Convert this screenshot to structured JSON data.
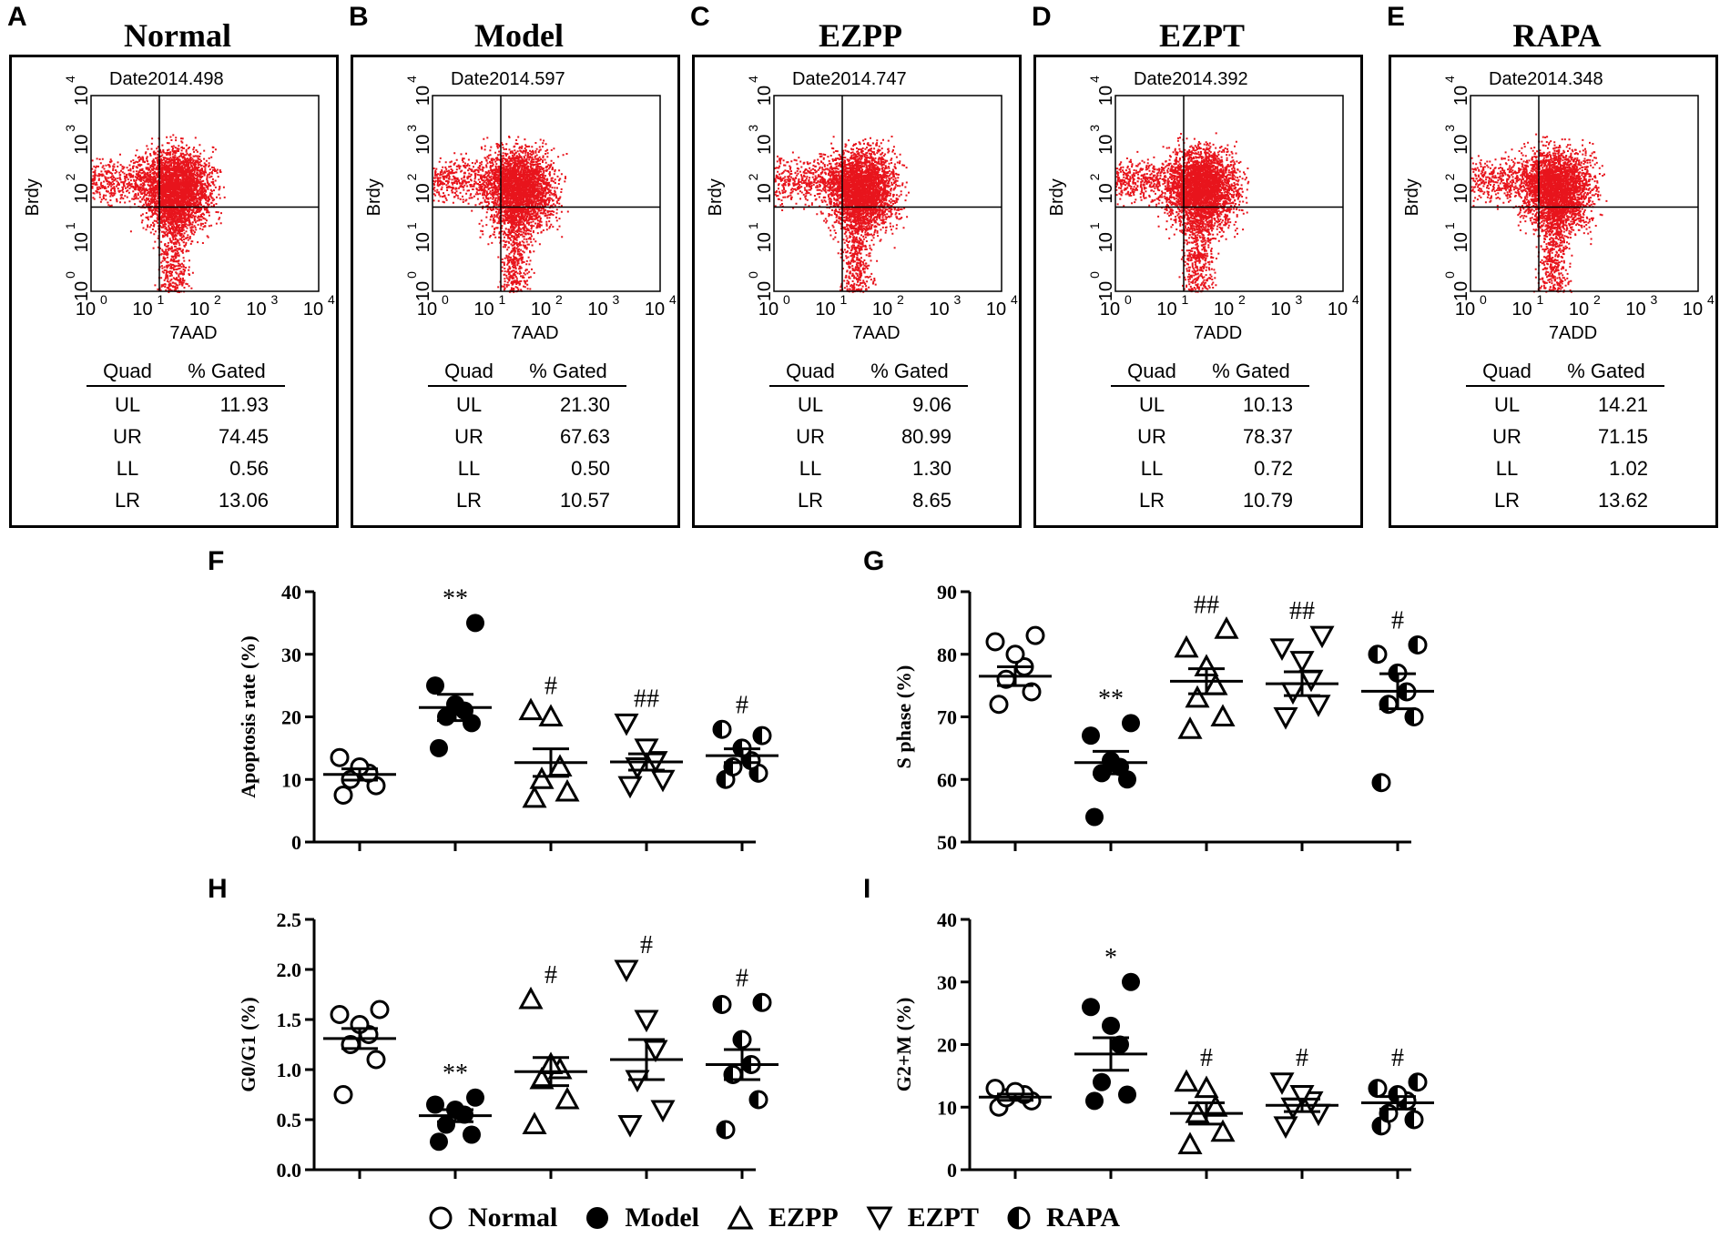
{
  "flow_panels": [
    {
      "letter": "A",
      "title": "Normal",
      "date": "Date2014.498",
      "xaxis": "7AAD",
      "yaxis": "Brdy",
      "table_header": [
        "Quad",
        "% Gated"
      ],
      "rows": [
        {
          "q": "UL",
          "v": "11.93"
        },
        {
          "q": "UR",
          "v": "74.45"
        },
        {
          "q": "LL",
          "v": "0.56"
        },
        {
          "q": "LR",
          "v": "13.06"
        }
      ]
    },
    {
      "letter": "B",
      "title": "Model",
      "date": "Date2014.597",
      "xaxis": "7AAD",
      "yaxis": "Brdy",
      "table_header": [
        "Quad",
        "% Gated"
      ],
      "rows": [
        {
          "q": "UL",
          "v": "21.30"
        },
        {
          "q": "UR",
          "v": "67.63"
        },
        {
          "q": "LL",
          "v": "0.50"
        },
        {
          "q": "LR",
          "v": "10.57"
        }
      ]
    },
    {
      "letter": "C",
      "title": "EZPP",
      "date": "Date2014.747",
      "xaxis": "7AAD",
      "yaxis": "Brdy",
      "table_header": [
        "Quad",
        "% Gated"
      ],
      "rows": [
        {
          "q": "UL",
          "v": "9.06"
        },
        {
          "q": "UR",
          "v": "80.99"
        },
        {
          "q": "LL",
          "v": "1.30"
        },
        {
          "q": "LR",
          "v": "8.65"
        }
      ]
    },
    {
      "letter": "D",
      "title": "EZPT",
      "date": "Date2014.392",
      "xaxis": "7ADD",
      "yaxis": "Brdy",
      "table_header": [
        "Quad",
        "% Gated"
      ],
      "rows": [
        {
          "q": "UL",
          "v": "10.13"
        },
        {
          "q": "UR",
          "v": "78.37"
        },
        {
          "q": "LL",
          "v": "0.72"
        },
        {
          "q": "LR",
          "v": "10.79"
        }
      ]
    },
    {
      "letter": "E",
      "title": "RAPA",
      "date": "Date2014.348",
      "xaxis": "7ADD",
      "yaxis": "Brdy",
      "table_header": [
        "Quad",
        "% Gated"
      ],
      "rows": [
        {
          "q": "UL",
          "v": "14.21"
        },
        {
          "q": "UR",
          "v": "71.15"
        },
        {
          "q": "LL",
          "v": "1.02"
        },
        {
          "q": "LR",
          "v": "13.62"
        }
      ]
    }
  ],
  "flow_tick_labels": [
    "10",
    "10",
    "10",
    "10",
    "10"
  ],
  "flow_tick_exponents": [
    "0",
    "1",
    "2",
    "3",
    "4"
  ],
  "dot_color": "#e8141c",
  "chart_data": [
    {
      "letter": "F",
      "type": "scatter",
      "ylabel": "Apoptosis rate (%)",
      "ylim": [
        0,
        40
      ],
      "yticks": [
        0,
        10,
        20,
        30,
        40
      ],
      "groups": [
        {
          "name": "Normal",
          "values": [
            7.5,
            9,
            10,
            11,
            12,
            13.5
          ],
          "mean": 10.8,
          "sem": 0.9,
          "annotation": ""
        },
        {
          "name": "Model",
          "values": [
            15,
            19,
            20,
            21,
            22,
            25,
            35
          ],
          "mean": 21.5,
          "sem": 2.1,
          "annotation": "**"
        },
        {
          "name": "EZPP",
          "values": [
            7,
            8,
            10,
            12,
            20,
            21
          ],
          "mean": 12.7,
          "sem": 2.2,
          "annotation": "#"
        },
        {
          "name": "EZPT",
          "values": [
            9,
            10,
            12,
            13,
            15,
            19
          ],
          "mean": 12.8,
          "sem": 1.3,
          "annotation": "##"
        },
        {
          "name": "RAPA",
          "values": [
            10,
            11,
            12,
            13,
            15,
            18,
            17
          ],
          "mean": 13.8,
          "sem": 1.1,
          "annotation": "#"
        }
      ]
    },
    {
      "letter": "G",
      "type": "scatter",
      "ylabel": "S phase (%)",
      "ylim": [
        50,
        90
      ],
      "yticks": [
        50,
        60,
        70,
        80,
        90
      ],
      "groups": [
        {
          "name": "Normal",
          "values": [
            72,
            74,
            76,
            78,
            80,
            82,
            83
          ],
          "mean": 76.5,
          "sem": 1.5,
          "annotation": ""
        },
        {
          "name": "Model",
          "values": [
            54,
            60,
            61,
            62,
            63,
            67,
            69
          ],
          "mean": 62.7,
          "sem": 1.8,
          "annotation": "**"
        },
        {
          "name": "EZPP",
          "values": [
            68,
            70,
            73,
            75,
            78,
            81,
            84
          ],
          "mean": 75.7,
          "sem": 2.0,
          "annotation": "##"
        },
        {
          "name": "EZPT",
          "values": [
            70,
            72,
            74,
            76,
            79,
            81,
            83
          ],
          "mean": 75.3,
          "sem": 1.9,
          "annotation": "##"
        },
        {
          "name": "RAPA",
          "values": [
            59.5,
            70,
            72,
            74,
            77,
            80,
            81.5
          ],
          "mean": 74.1,
          "sem": 2.8,
          "annotation": "#"
        }
      ]
    },
    {
      "letter": "H",
      "type": "scatter",
      "ylabel": "G0/G1 (%)",
      "ylim": [
        0,
        2.5
      ],
      "yticks": [
        "0.0",
        "0.5",
        "1.0",
        "1.5",
        "2.0",
        "2.5"
      ],
      "groups": [
        {
          "name": "Normal",
          "values": [
            0.75,
            1.1,
            1.25,
            1.35,
            1.45,
            1.55,
            1.6
          ],
          "mean": 1.31,
          "sem": 0.1,
          "annotation": ""
        },
        {
          "name": "Model",
          "values": [
            0.28,
            0.35,
            0.45,
            0.55,
            0.6,
            0.65,
            0.72
          ],
          "mean": 0.54,
          "sem": 0.06,
          "annotation": "**"
        },
        {
          "name": "EZPP",
          "values": [
            0.45,
            0.7,
            0.9,
            1.0,
            1.05,
            1.7
          ],
          "mean": 0.98,
          "sem": 0.14,
          "annotation": "#"
        },
        {
          "name": "EZPT",
          "values": [
            0.45,
            0.6,
            0.9,
            1.2,
            1.5,
            2.0
          ],
          "mean": 1.1,
          "sem": 0.2,
          "annotation": "#"
        },
        {
          "name": "RAPA",
          "values": [
            0.4,
            0.7,
            0.95,
            1.05,
            1.3,
            1.65,
            1.67
          ],
          "mean": 1.05,
          "sem": 0.15,
          "annotation": "#"
        }
      ]
    },
    {
      "letter": "I",
      "type": "scatter",
      "ylabel": "G2+M (%)",
      "ylim": [
        0,
        40
      ],
      "yticks": [
        0,
        10,
        20,
        30,
        40
      ],
      "groups": [
        {
          "name": "Normal",
          "values": [
            10,
            11,
            11.5,
            12,
            12.5,
            13
          ],
          "mean": 11.6,
          "sem": 0.5,
          "annotation": ""
        },
        {
          "name": "Model",
          "values": [
            11,
            12,
            14,
            20,
            23,
            26,
            30
          ],
          "mean": 18.5,
          "sem": 2.6,
          "annotation": "*"
        },
        {
          "name": "EZPP",
          "values": [
            4,
            6,
            9,
            10,
            13,
            14
          ],
          "mean": 9.0,
          "sem": 1.7,
          "annotation": "#"
        },
        {
          "name": "EZPT",
          "values": [
            7,
            9,
            10,
            11,
            12,
            14
          ],
          "mean": 10.3,
          "sem": 1.0,
          "annotation": "#"
        },
        {
          "name": "RAPA",
          "values": [
            7,
            8,
            9,
            11,
            12,
            13,
            14
          ],
          "mean": 10.7,
          "sem": 1.0,
          "annotation": "#"
        }
      ]
    }
  ],
  "legend": [
    "Normal",
    "Model",
    "EZPP",
    "EZPT",
    "RAPA"
  ]
}
